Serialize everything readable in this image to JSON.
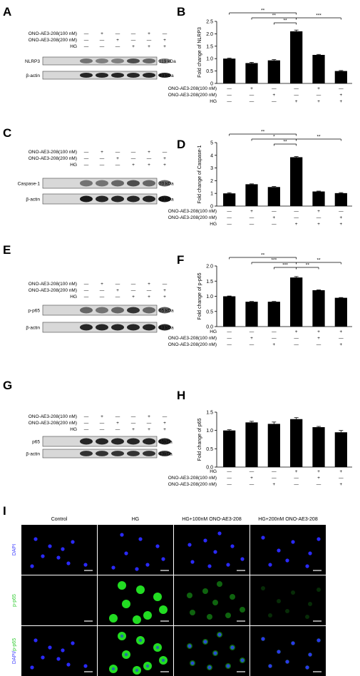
{
  "panels": [
    {
      "id": "A",
      "letter": "A"
    },
    {
      "id": "B",
      "letter": "B"
    },
    {
      "id": "C",
      "letter": "C"
    },
    {
      "id": "D",
      "letter": "D"
    },
    {
      "id": "E",
      "letter": "E"
    },
    {
      "id": "F",
      "letter": "F"
    },
    {
      "id": "G",
      "letter": "G"
    },
    {
      "id": "H",
      "letter": "H"
    },
    {
      "id": "I",
      "letter": "I"
    }
  ],
  "blots": [
    {
      "id": "A",
      "rows": [
        "ONO-AE3-208(100 nM)",
        "ONO-AE3-208(200 nM)",
        "HG"
      ],
      "signs": [
        [
          "—",
          "+",
          "—",
          "—",
          "+",
          "—"
        ],
        [
          "—",
          "—",
          "+",
          "—",
          "—",
          "+"
        ],
        [
          "—",
          "—",
          "—",
          "+",
          "+",
          "+"
        ]
      ],
      "bands": [
        {
          "name": "NLRP3",
          "kda": "119 kDa",
          "intensity": [
            0.55,
            0.5,
            0.5,
            0.7,
            0.6,
            0.5
          ]
        },
        {
          "name": "β-actin",
          "kda": "43 kDa",
          "intensity": [
            0.85,
            0.85,
            0.85,
            0.85,
            0.85,
            0.85
          ]
        }
      ]
    },
    {
      "id": "C",
      "rows": [
        "ONO-AE3-208(100 nM)",
        "ONO-AE3-208(200 nM)",
        "HG"
      ],
      "signs": [
        [
          "—",
          "+",
          "—",
          "—",
          "+",
          "—"
        ],
        [
          "—",
          "—",
          "+",
          "—",
          "—",
          "+"
        ],
        [
          "—",
          "—",
          "—",
          "+",
          "+",
          "+"
        ]
      ],
      "bands": [
        {
          "name": "Caspase-1",
          "kda": "20 kDa",
          "intensity": [
            0.55,
            0.55,
            0.6,
            0.7,
            0.6,
            0.6
          ]
        },
        {
          "name": "β-actin",
          "kda": "43 kDa",
          "intensity": [
            0.9,
            0.85,
            0.85,
            0.85,
            0.85,
            0.9
          ]
        }
      ]
    },
    {
      "id": "E",
      "rows": [
        "ONO-AE3-208(100 nM)",
        "ONO-AE3-208(200 nM)",
        "HG"
      ],
      "signs": [
        [
          "—",
          "+",
          "—",
          "—",
          "+",
          "—"
        ],
        [
          "—",
          "—",
          "+",
          "—",
          "—",
          "+"
        ],
        [
          "—",
          "—",
          "—",
          "+",
          "+",
          "+"
        ]
      ],
      "bands": [
        {
          "name": "p-p65",
          "kda": "65 kDa",
          "intensity": [
            0.6,
            0.55,
            0.6,
            0.8,
            0.6,
            0.65
          ]
        },
        {
          "name": "β-actin",
          "kda": "43 kDa",
          "intensity": [
            0.85,
            0.85,
            0.85,
            0.85,
            0.85,
            0.85
          ]
        }
      ]
    },
    {
      "id": "G",
      "rows": [
        "ONO-AE3-208(100 nM)",
        "ONO-AE3-208(200 nM)",
        "HG"
      ],
      "signs": [
        [
          "—",
          "+",
          "—",
          "—",
          "+",
          "—"
        ],
        [
          "—",
          "—",
          "+",
          "—",
          "—",
          "+"
        ],
        [
          "—",
          "—",
          "—",
          "+",
          "+",
          "+"
        ]
      ],
      "bands": [
        {
          "name": "p65",
          "kda": "65kDa",
          "intensity": [
            0.85,
            0.85,
            0.85,
            0.85,
            0.85,
            0.85
          ]
        },
        {
          "name": "β-actin",
          "kda": "43kDa",
          "intensity": [
            0.8,
            0.8,
            0.8,
            0.8,
            0.8,
            0.8
          ]
        }
      ]
    }
  ],
  "chart_data": [
    {
      "id": "B",
      "type": "bar",
      "ylabel": "Fold change of NLRP3",
      "ylim": [
        0,
        2.5
      ],
      "yticks": [
        "0",
        "0.5",
        "1.0",
        "1.5",
        "2.0",
        "2.5"
      ],
      "values": [
        1.0,
        0.82,
        0.93,
        2.1,
        1.15,
        0.5
      ],
      "errors": [
        0.02,
        0.03,
        0.03,
        0.05,
        0.02,
        0.02
      ],
      "rows": [
        "ONO-AE3-208(100 nM)",
        "ONO-AE3-208(200 nM)",
        "HG"
      ],
      "signs": [
        [
          "—",
          "+",
          "—",
          "—",
          "+",
          "—"
        ],
        [
          "—",
          "—",
          "+",
          "—",
          "—",
          "+"
        ],
        [
          "—",
          "—",
          "—",
          "+",
          "+",
          "+"
        ]
      ],
      "sig": [
        {
          "from": 0,
          "to": 3,
          "label": "**",
          "level": 3
        },
        {
          "from": 1,
          "to": 3,
          "label": "**",
          "level": 2
        },
        {
          "from": 2,
          "to": 3,
          "label": "**",
          "level": 1
        },
        {
          "from": 3,
          "to": 5,
          "label": "***",
          "level": 2
        }
      ]
    },
    {
      "id": "D",
      "type": "bar",
      "ylabel": "Fold change of Caspase-1",
      "ylim": [
        0,
        5
      ],
      "yticks": [
        "0",
        "1",
        "2",
        "3",
        "4",
        "5"
      ],
      "values": [
        1.0,
        1.72,
        1.5,
        3.85,
        1.15,
        1.02
      ],
      "errors": [
        0.05,
        0.03,
        0.04,
        0.05,
        0.03,
        0.04
      ],
      "rows": [
        "ONO-AE3-208(100 nM)",
        "ONO-AE3-208(200 nM)",
        "HG"
      ],
      "signs": [
        [
          "—",
          "+",
          "—",
          "—",
          "+",
          "—"
        ],
        [
          "—",
          "—",
          "+",
          "—",
          "—",
          "+"
        ],
        [
          "—",
          "—",
          "—",
          "+",
          "+",
          "+"
        ]
      ],
      "sig": [
        {
          "from": 0,
          "to": 3,
          "label": "**",
          "level": 3
        },
        {
          "from": 1,
          "to": 3,
          "label": "*",
          "level": 2
        },
        {
          "from": 2,
          "to": 3,
          "label": "**",
          "level": 1
        },
        {
          "from": 3,
          "to": 5,
          "label": "**",
          "level": 2
        }
      ]
    },
    {
      "id": "F",
      "type": "bar",
      "ylabel": "Fold change of p-p65",
      "ylim": [
        0,
        2.0
      ],
      "yticks": [
        "0.0",
        "0.5",
        "1.0",
        "1.5",
        "2.0"
      ],
      "values": [
        1.0,
        0.82,
        0.82,
        1.62,
        1.2,
        0.95
      ],
      "errors": [
        0.01,
        0.01,
        0.01,
        0.03,
        0.01,
        0.01
      ],
      "rows": [
        "HG",
        "ONO-AE3-208(100 nM)",
        "ONO-AE3-208(200 nM)"
      ],
      "signs": [
        [
          "—",
          "—",
          "—",
          "+",
          "+",
          "+"
        ],
        [
          "—",
          "+",
          "—",
          "—",
          "+",
          "—"
        ],
        [
          "—",
          "—",
          "+",
          "—",
          "—",
          "+"
        ]
      ],
      "sig": [
        {
          "from": 0,
          "to": 3,
          "label": "**",
          "level": 3
        },
        {
          "from": 1,
          "to": 3,
          "label": "***",
          "level": 2
        },
        {
          "from": 2,
          "to": 3,
          "label": "***",
          "level": 1
        },
        {
          "from": 3,
          "to": 4,
          "label": "**",
          "level": 1
        },
        {
          "from": 3,
          "to": 5,
          "label": "**",
          "level": 2
        }
      ]
    },
    {
      "id": "H",
      "type": "bar",
      "ylabel": "Fold change of p65",
      "ylim": [
        0,
        1.5
      ],
      "yticks": [
        "0.0",
        "0.5",
        "1.0",
        "1.5"
      ],
      "values": [
        1.0,
        1.22,
        1.18,
        1.31,
        1.09,
        0.95
      ],
      "errors": [
        0.02,
        0.03,
        0.05,
        0.04,
        0.02,
        0.05
      ],
      "rows": [
        "HG",
        "ONO-AE3-208(100 nM)",
        "ONO-AE3-208(200 nM)"
      ],
      "signs": [
        [
          "—",
          "—",
          "—",
          "+",
          "+",
          "+"
        ],
        [
          "—",
          "+",
          "—",
          "—",
          "+",
          "—"
        ],
        [
          "—",
          "—",
          "+",
          "—",
          "—",
          "+"
        ]
      ],
      "sig": []
    }
  ],
  "micro": {
    "columns": [
      "Control",
      "HG",
      "HG+100nM ONO-AE3-208",
      "HG+200nM ONO-AE3-208"
    ],
    "rows": [
      {
        "label": "DAPI",
        "color": "#3b3bff"
      },
      {
        "label": "p-p65",
        "color": "#33cc33"
      },
      {
        "label_a": "DAPI/",
        "label_b": "p-p65",
        "color_a": "#3b3bff",
        "color_b": "#33cc33"
      }
    ],
    "green_level": [
      0.0,
      1.0,
      0.45,
      0.2
    ]
  }
}
